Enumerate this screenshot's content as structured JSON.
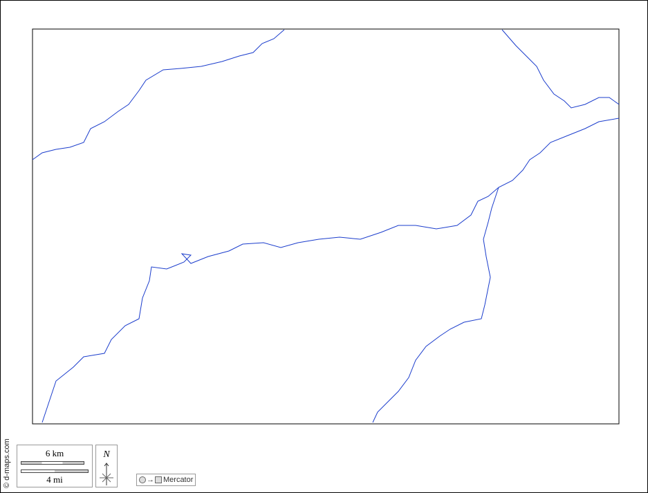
{
  "credit": "© d-maps.com",
  "scale": {
    "km_label": "6 km",
    "mi_label": "4 mi"
  },
  "north": {
    "label": "N"
  },
  "projection": {
    "label": "Mercator",
    "icon": "circle-to-square-icon"
  },
  "colors": {
    "river": "#1a3ccc",
    "frame": "#000000"
  }
}
